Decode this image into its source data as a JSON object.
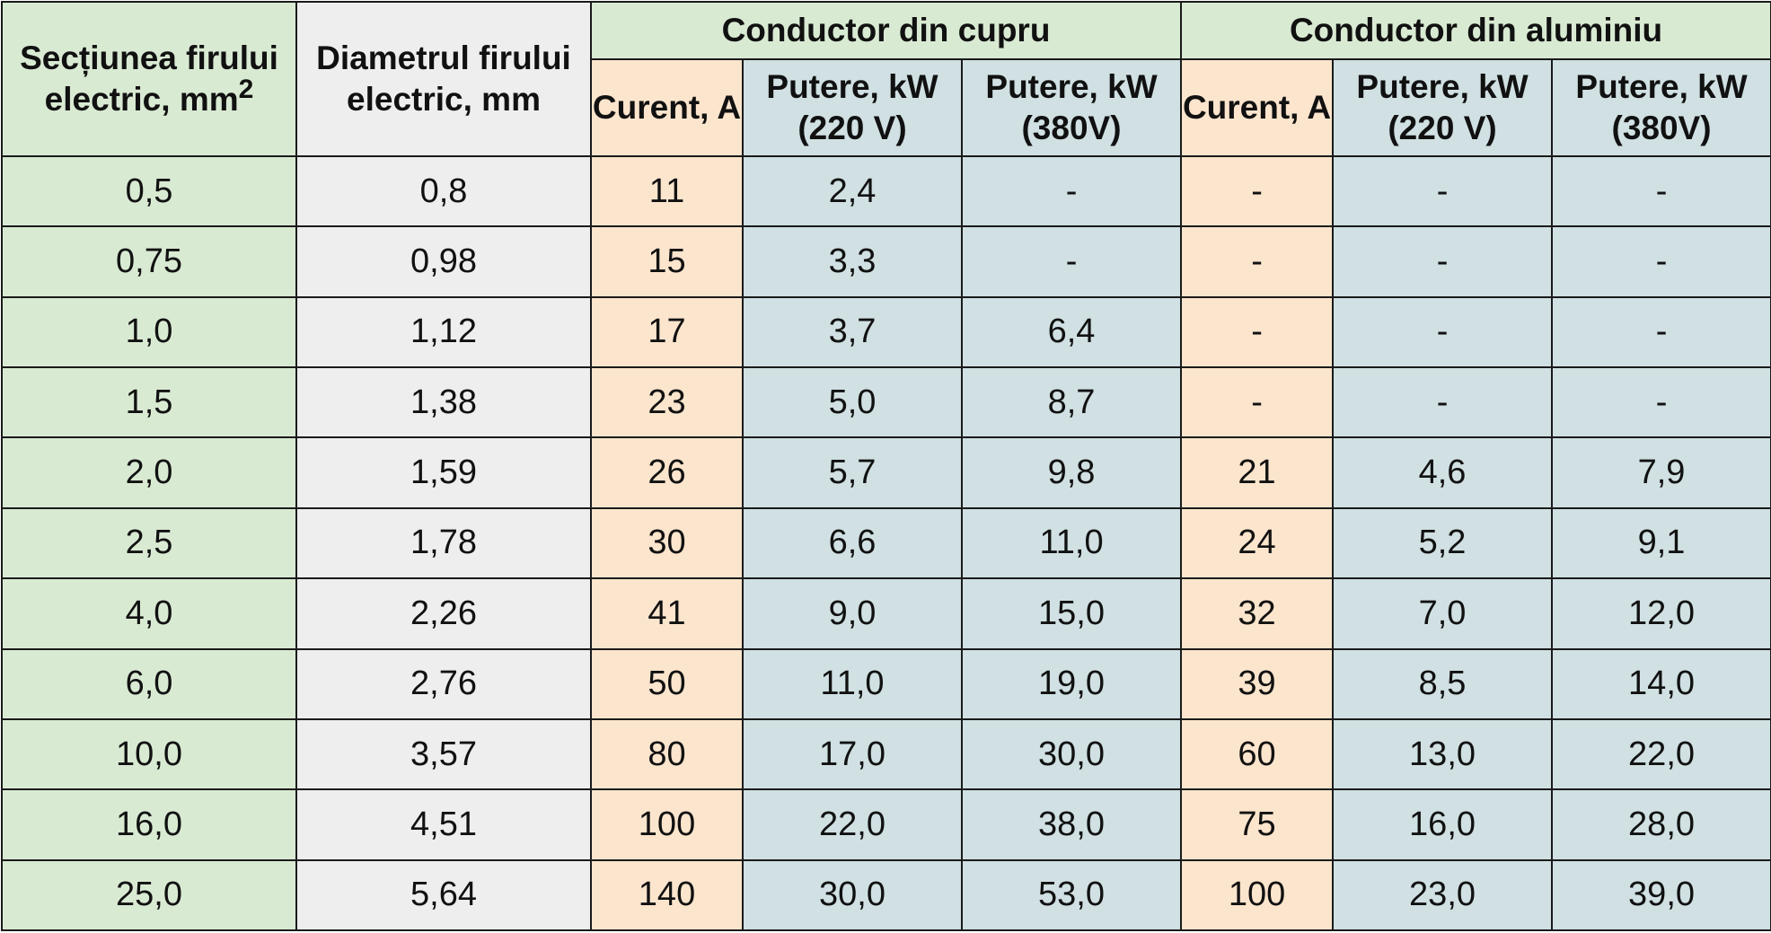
{
  "headers": {
    "section": "Secțiunea firului electric, mm",
    "section_sup": "2",
    "diameter": "Diametrul firului electric, mm",
    "copper_group": "Conductor din cupru",
    "aluminium_group": "Conductor din aluminiu",
    "current": "Curent, A",
    "power_220": "Putere, kW (220 V)",
    "power_380": "Putere, kW (380V)"
  },
  "rows": [
    {
      "section": "0,5",
      "diameter": "0,8",
      "cu_current": "11",
      "cu_p220": "2,4",
      "cu_p380": "-",
      "al_current": "-",
      "al_p220": "-",
      "al_p380": "-"
    },
    {
      "section": "0,75",
      "diameter": "0,98",
      "cu_current": "15",
      "cu_p220": "3,3",
      "cu_p380": "-",
      "al_current": "-",
      "al_p220": "-",
      "al_p380": "-"
    },
    {
      "section": "1,0",
      "diameter": "1,12",
      "cu_current": "17",
      "cu_p220": "3,7",
      "cu_p380": "6,4",
      "al_current": "-",
      "al_p220": "-",
      "al_p380": "-"
    },
    {
      "section": "1,5",
      "diameter": "1,38",
      "cu_current": "23",
      "cu_p220": "5,0",
      "cu_p380": "8,7",
      "al_current": "-",
      "al_p220": "-",
      "al_p380": "-"
    },
    {
      "section": "2,0",
      "diameter": "1,59",
      "cu_current": "26",
      "cu_p220": "5,7",
      "cu_p380": "9,8",
      "al_current": "21",
      "al_p220": "4,6",
      "al_p380": "7,9"
    },
    {
      "section": "2,5",
      "diameter": "1,78",
      "cu_current": "30",
      "cu_p220": "6,6",
      "cu_p380": "11,0",
      "al_current": "24",
      "al_p220": "5,2",
      "al_p380": "9,1"
    },
    {
      "section": "4,0",
      "diameter": "2,26",
      "cu_current": "41",
      "cu_p220": "9,0",
      "cu_p380": "15,0",
      "al_current": "32",
      "al_p220": "7,0",
      "al_p380": "12,0"
    },
    {
      "section": "6,0",
      "diameter": "2,76",
      "cu_current": "50",
      "cu_p220": "11,0",
      "cu_p380": "19,0",
      "al_current": "39",
      "al_p220": "8,5",
      "al_p380": "14,0"
    },
    {
      "section": "10,0",
      "diameter": "3,57",
      "cu_current": "80",
      "cu_p220": "17,0",
      "cu_p380": "30,0",
      "al_current": "60",
      "al_p220": "13,0",
      "al_p380": "22,0"
    },
    {
      "section": "16,0",
      "diameter": "4,51",
      "cu_current": "100",
      "cu_p220": "22,0",
      "cu_p380": "38,0",
      "al_current": "75",
      "al_p220": "16,0",
      "al_p380": "28,0"
    },
    {
      "section": "25,0",
      "diameter": "5,64",
      "cu_current": "140",
      "cu_p220": "30,0",
      "cu_p380": "53,0",
      "al_current": "100",
      "al_p220": "23,0",
      "al_p380": "39,0"
    }
  ],
  "colors": {
    "section_column": "#d9ead3",
    "diameter_column": "#eeeeee",
    "current_columns": "#fce5cd",
    "power_columns": "#d0e0e3",
    "group_headers": "#d9ead3",
    "border": "#1a1a1a"
  }
}
